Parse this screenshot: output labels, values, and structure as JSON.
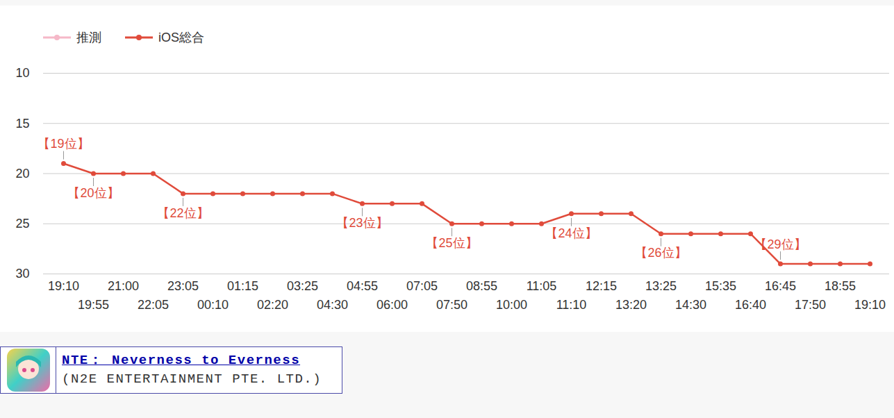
{
  "chart_data": {
    "type": "line",
    "categories": [
      "19:10",
      "19:55",
      "21:00",
      "22:05",
      "23:05",
      "00:10",
      "01:15",
      "02:20",
      "03:25",
      "04:30",
      "04:55",
      "06:00",
      "07:05",
      "07:50",
      "08:55",
      "10:00",
      "11:05",
      "11:10",
      "12:15",
      "13:20",
      "13:25",
      "14:30",
      "15:35",
      "16:40",
      "16:45",
      "17:50",
      "18:55",
      "19:10"
    ],
    "series": [
      {
        "name": "推測",
        "color": "#f5b8c8",
        "marker": "circle",
        "values": [
          null,
          null,
          null,
          null,
          null,
          null,
          null,
          null,
          null,
          null,
          null,
          null,
          null,
          null,
          null,
          null,
          null,
          null,
          null,
          null,
          null,
          null,
          null,
          null,
          null,
          null,
          null,
          null
        ]
      },
      {
        "name": "iOS総合",
        "color": "#e04b3b",
        "marker": "circle",
        "values": [
          19,
          20,
          20,
          20,
          22,
          22,
          22,
          22,
          22,
          22,
          23,
          23,
          23,
          25,
          25,
          25,
          25,
          24,
          24,
          24,
          26,
          26,
          26,
          26,
          29,
          29,
          29,
          29
        ],
        "value_labels": [
          "【19位】",
          "【20位】",
          null,
          null,
          "【22位】",
          null,
          null,
          null,
          null,
          null,
          "【23位】",
          null,
          null,
          "【25位】",
          null,
          null,
          null,
          "【24位】",
          null,
          null,
          "【26位】",
          null,
          null,
          null,
          "【29位】",
          null,
          null,
          null
        ]
      }
    ],
    "ylim": [
      30,
      10
    ],
    "yticks": [
      10,
      15,
      20,
      25,
      30
    ],
    "grid": true,
    "legend": "top-left",
    "data_labels": true
  },
  "app_card": {
    "title": "NTE： Neverness to Everness",
    "developer": "(N2E ENTERTAINMENT PTE. LTD.)"
  }
}
